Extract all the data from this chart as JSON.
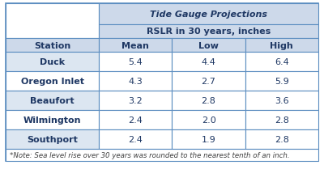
{
  "title1": "Tide Gauge Projections",
  "title2": "RSLR in 30 years, inches",
  "col_headers": [
    "Mean",
    "Low",
    "High"
  ],
  "station_label": "Station",
  "stations": [
    "Duck",
    "Oregon Inlet",
    "Beaufort",
    "Wilmington",
    "Southport"
  ],
  "mean": [
    "5.4",
    "4.3",
    "3.2",
    "2.4",
    "2.4"
  ],
  "low": [
    "4.4",
    "2.7",
    "2.8",
    "2.0",
    "1.9"
  ],
  "high": [
    "6.4",
    "5.9",
    "3.6",
    "2.8",
    "2.8"
  ],
  "note": "*Note: Sea level rise over 30 years was rounded to the nearest tenth of an inch.",
  "header_bg": "#cdd9ea",
  "row_bg_even": "#dce6f1",
  "row_bg_odd": "#ffffff",
  "border_color": "#5b8dc0",
  "text_color": "#1f3864",
  "note_color": "#404040",
  "header_fontsize": 8.0,
  "data_fontsize": 8.0,
  "note_fontsize": 6.2
}
